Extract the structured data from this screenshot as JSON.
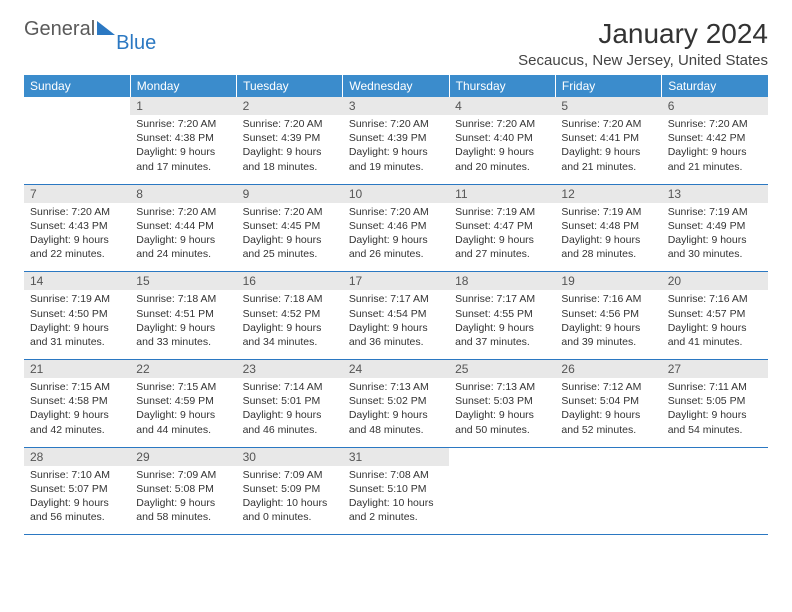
{
  "logo": {
    "part1": "General",
    "part2": "Blue"
  },
  "title": "January 2024",
  "location": "Secaucus, New Jersey, United States",
  "colors": {
    "header_bg": "#3b8ccc",
    "header_text": "#ffffff",
    "daynum_bg": "#e8e8e8",
    "row_border": "#2b78c2",
    "logo_gray": "#5a5a5a",
    "logo_blue": "#2b78c2"
  },
  "daysOfWeek": [
    "Sunday",
    "Monday",
    "Tuesday",
    "Wednesday",
    "Thursday",
    "Friday",
    "Saturday"
  ],
  "weeks": [
    {
      "nums": [
        "",
        "1",
        "2",
        "3",
        "4",
        "5",
        "6"
      ],
      "cells": [
        {
          "empty": true
        },
        {
          "sunrise": "7:20 AM",
          "sunset": "4:38 PM",
          "daylight": "9 hours and 17 minutes."
        },
        {
          "sunrise": "7:20 AM",
          "sunset": "4:39 PM",
          "daylight": "9 hours and 18 minutes."
        },
        {
          "sunrise": "7:20 AM",
          "sunset": "4:39 PM",
          "daylight": "9 hours and 19 minutes."
        },
        {
          "sunrise": "7:20 AM",
          "sunset": "4:40 PM",
          "daylight": "9 hours and 20 minutes."
        },
        {
          "sunrise": "7:20 AM",
          "sunset": "4:41 PM",
          "daylight": "9 hours and 21 minutes."
        },
        {
          "sunrise": "7:20 AM",
          "sunset": "4:42 PM",
          "daylight": "9 hours and 21 minutes."
        }
      ]
    },
    {
      "nums": [
        "7",
        "8",
        "9",
        "10",
        "11",
        "12",
        "13"
      ],
      "cells": [
        {
          "sunrise": "7:20 AM",
          "sunset": "4:43 PM",
          "daylight": "9 hours and 22 minutes."
        },
        {
          "sunrise": "7:20 AM",
          "sunset": "4:44 PM",
          "daylight": "9 hours and 24 minutes."
        },
        {
          "sunrise": "7:20 AM",
          "sunset": "4:45 PM",
          "daylight": "9 hours and 25 minutes."
        },
        {
          "sunrise": "7:20 AM",
          "sunset": "4:46 PM",
          "daylight": "9 hours and 26 minutes."
        },
        {
          "sunrise": "7:19 AM",
          "sunset": "4:47 PM",
          "daylight": "9 hours and 27 minutes."
        },
        {
          "sunrise": "7:19 AM",
          "sunset": "4:48 PM",
          "daylight": "9 hours and 28 minutes."
        },
        {
          "sunrise": "7:19 AM",
          "sunset": "4:49 PM",
          "daylight": "9 hours and 30 minutes."
        }
      ]
    },
    {
      "nums": [
        "14",
        "15",
        "16",
        "17",
        "18",
        "19",
        "20"
      ],
      "cells": [
        {
          "sunrise": "7:19 AM",
          "sunset": "4:50 PM",
          "daylight": "9 hours and 31 minutes."
        },
        {
          "sunrise": "7:18 AM",
          "sunset": "4:51 PM",
          "daylight": "9 hours and 33 minutes."
        },
        {
          "sunrise": "7:18 AM",
          "sunset": "4:52 PM",
          "daylight": "9 hours and 34 minutes."
        },
        {
          "sunrise": "7:17 AM",
          "sunset": "4:54 PM",
          "daylight": "9 hours and 36 minutes."
        },
        {
          "sunrise": "7:17 AM",
          "sunset": "4:55 PM",
          "daylight": "9 hours and 37 minutes."
        },
        {
          "sunrise": "7:16 AM",
          "sunset": "4:56 PM",
          "daylight": "9 hours and 39 minutes."
        },
        {
          "sunrise": "7:16 AM",
          "sunset": "4:57 PM",
          "daylight": "9 hours and 41 minutes."
        }
      ]
    },
    {
      "nums": [
        "21",
        "22",
        "23",
        "24",
        "25",
        "26",
        "27"
      ],
      "cells": [
        {
          "sunrise": "7:15 AM",
          "sunset": "4:58 PM",
          "daylight": "9 hours and 42 minutes."
        },
        {
          "sunrise": "7:15 AM",
          "sunset": "4:59 PM",
          "daylight": "9 hours and 44 minutes."
        },
        {
          "sunrise": "7:14 AM",
          "sunset": "5:01 PM",
          "daylight": "9 hours and 46 minutes."
        },
        {
          "sunrise": "7:13 AM",
          "sunset": "5:02 PM",
          "daylight": "9 hours and 48 minutes."
        },
        {
          "sunrise": "7:13 AM",
          "sunset": "5:03 PM",
          "daylight": "9 hours and 50 minutes."
        },
        {
          "sunrise": "7:12 AM",
          "sunset": "5:04 PM",
          "daylight": "9 hours and 52 minutes."
        },
        {
          "sunrise": "7:11 AM",
          "sunset": "5:05 PM",
          "daylight": "9 hours and 54 minutes."
        }
      ]
    },
    {
      "nums": [
        "28",
        "29",
        "30",
        "31",
        "",
        "",
        ""
      ],
      "cells": [
        {
          "sunrise": "7:10 AM",
          "sunset": "5:07 PM",
          "daylight": "9 hours and 56 minutes."
        },
        {
          "sunrise": "7:09 AM",
          "sunset": "5:08 PM",
          "daylight": "9 hours and 58 minutes."
        },
        {
          "sunrise": "7:09 AM",
          "sunset": "5:09 PM",
          "daylight": "10 hours and 0 minutes."
        },
        {
          "sunrise": "7:08 AM",
          "sunset": "5:10 PM",
          "daylight": "10 hours and 2 minutes."
        },
        {
          "empty": true
        },
        {
          "empty": true
        },
        {
          "empty": true
        }
      ]
    }
  ],
  "labels": {
    "sunrise": "Sunrise:",
    "sunset": "Sunset:",
    "daylight": "Daylight:"
  }
}
